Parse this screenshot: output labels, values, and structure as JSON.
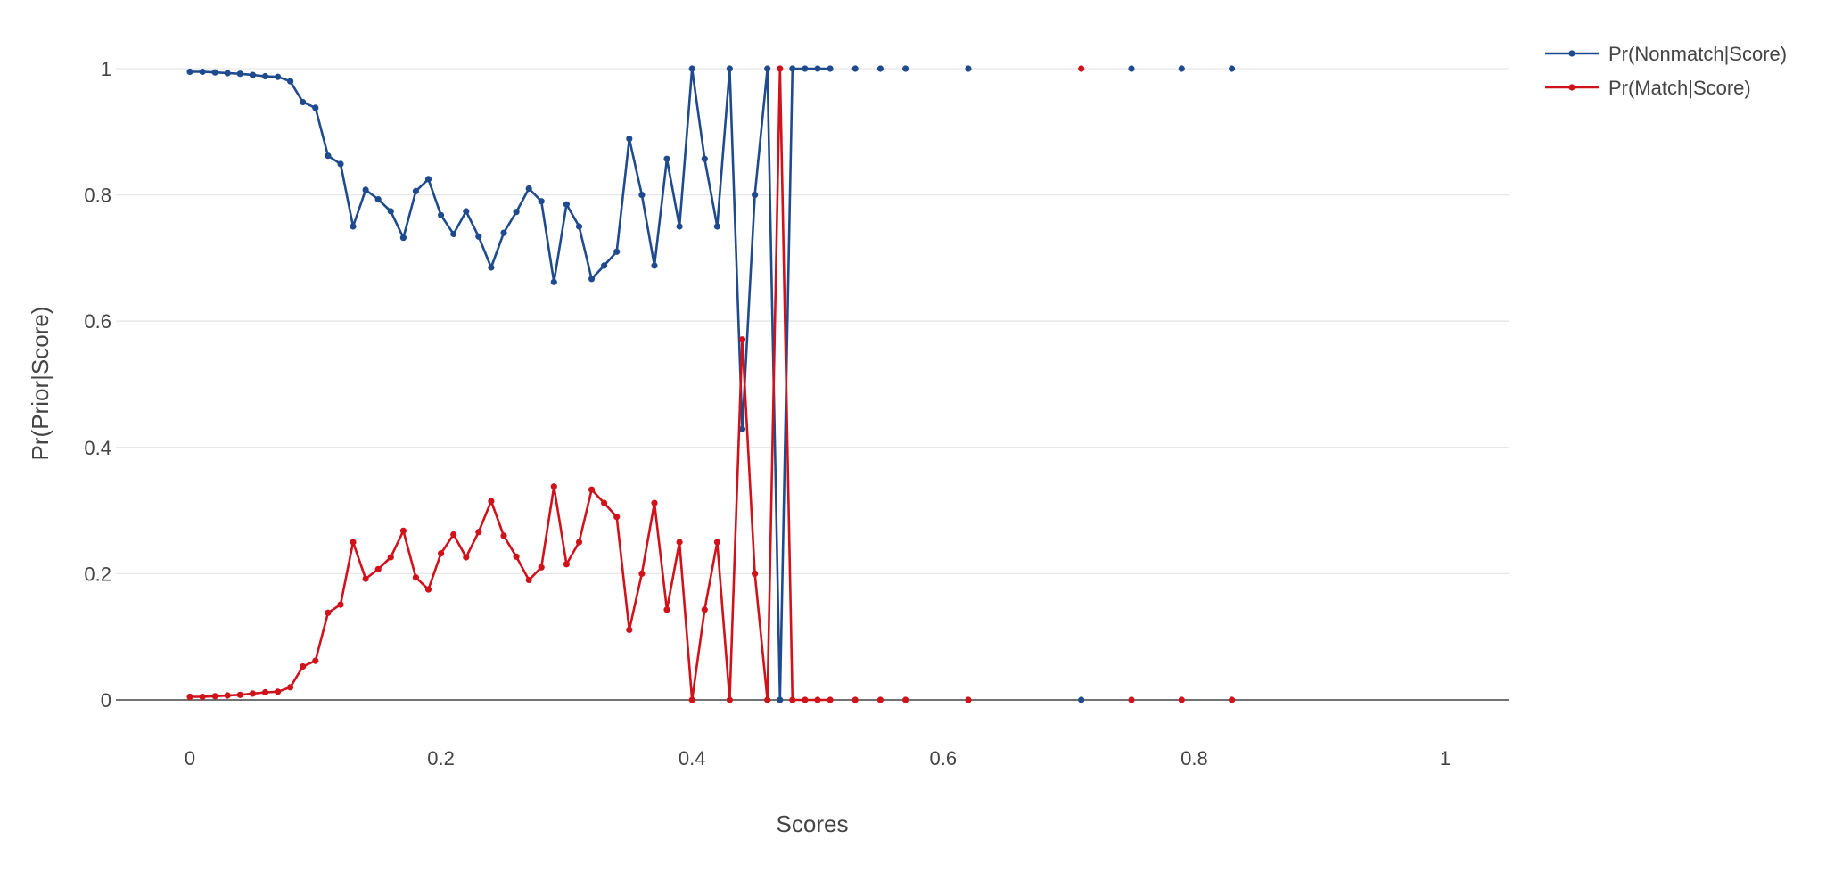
{
  "chart_data": {
    "type": "line",
    "title": "",
    "xlabel": "Scores",
    "ylabel": "Pr(Prior|Score)",
    "xlim": [
      -0.06,
      1.05
    ],
    "ylim": [
      -0.09,
      1.07
    ],
    "x_ticks": [
      0,
      0.2,
      0.4,
      0.6,
      0.8,
      1
    ],
    "x_tick_labels": [
      "0",
      "0.2",
      "0.4",
      "0.6",
      "0.8",
      "1"
    ],
    "y_ticks": [
      0,
      0.2,
      0.4,
      0.6,
      0.8,
      1
    ],
    "y_tick_labels": [
      "0",
      "0.2",
      "0.4",
      "0.6",
      "0.8",
      "1"
    ],
    "grid": true,
    "legend_position": "top-right",
    "series": [
      {
        "name": "Pr(Nonmatch|Score)",
        "color": "#1f4b8e",
        "marker": "circle",
        "points": [
          [
            0.0,
            0.995
          ],
          [
            0.01,
            0.995
          ],
          [
            0.02,
            0.994
          ],
          [
            0.03,
            0.993
          ],
          [
            0.04,
            0.992
          ],
          [
            0.05,
            0.99
          ],
          [
            0.06,
            0.988
          ],
          [
            0.07,
            0.987
          ],
          [
            0.08,
            0.98
          ],
          [
            0.09,
            0.947
          ],
          [
            0.1,
            0.938
          ],
          [
            0.11,
            0.862
          ],
          [
            0.12,
            0.849
          ],
          [
            0.13,
            0.75
          ],
          [
            0.14,
            0.808
          ],
          [
            0.15,
            0.793
          ],
          [
            0.16,
            0.774
          ],
          [
            0.17,
            0.732
          ],
          [
            0.18,
            0.806
          ],
          [
            0.19,
            0.825
          ],
          [
            0.2,
            0.768
          ],
          [
            0.21,
            0.738
          ],
          [
            0.22,
            0.774
          ],
          [
            0.23,
            0.734
          ],
          [
            0.24,
            0.685
          ],
          [
            0.25,
            0.74
          ],
          [
            0.26,
            0.773
          ],
          [
            0.27,
            0.81
          ],
          [
            0.28,
            0.79
          ],
          [
            0.29,
            0.662
          ],
          [
            0.3,
            0.785
          ],
          [
            0.31,
            0.75
          ],
          [
            0.32,
            0.667
          ],
          [
            0.33,
            0.688
          ],
          [
            0.34,
            0.71
          ],
          [
            0.35,
            0.889
          ],
          [
            0.36,
            0.8
          ],
          [
            0.37,
            0.688
          ],
          [
            0.38,
            0.857
          ],
          [
            0.39,
            0.75
          ],
          [
            0.4,
            1.0
          ],
          [
            0.41,
            0.857
          ],
          [
            0.42,
            0.75
          ],
          [
            0.43,
            1.0
          ],
          [
            0.44,
            0.429
          ],
          [
            0.45,
            0.8
          ],
          [
            0.46,
            1.0
          ],
          [
            0.47,
            0.0
          ],
          [
            0.48,
            1.0
          ],
          [
            0.49,
            1.0
          ],
          [
            0.5,
            1.0
          ],
          [
            0.51,
            1.0
          ],
          null,
          [
            0.53,
            1.0
          ],
          null,
          [
            0.55,
            1.0
          ],
          null,
          [
            0.57,
            1.0
          ],
          null,
          [
            0.62,
            1.0
          ],
          null,
          [
            0.71,
            0.0
          ],
          null,
          [
            0.75,
            1.0
          ],
          null,
          [
            0.79,
            1.0
          ],
          null,
          [
            0.83,
            1.0
          ]
        ]
      },
      {
        "name": "Pr(Match|Score)",
        "color": "#d0121b",
        "marker": "circle",
        "points": [
          [
            0.0,
            0.005
          ],
          [
            0.01,
            0.005
          ],
          [
            0.02,
            0.006
          ],
          [
            0.03,
            0.007
          ],
          [
            0.04,
            0.008
          ],
          [
            0.05,
            0.01
          ],
          [
            0.06,
            0.012
          ],
          [
            0.07,
            0.013
          ],
          [
            0.08,
            0.02
          ],
          [
            0.09,
            0.053
          ],
          [
            0.1,
            0.062
          ],
          [
            0.11,
            0.138
          ],
          [
            0.12,
            0.151
          ],
          [
            0.13,
            0.25
          ],
          [
            0.14,
            0.192
          ],
          [
            0.15,
            0.207
          ],
          [
            0.16,
            0.226
          ],
          [
            0.17,
            0.268
          ],
          [
            0.18,
            0.194
          ],
          [
            0.19,
            0.175
          ],
          [
            0.2,
            0.232
          ],
          [
            0.21,
            0.262
          ],
          [
            0.22,
            0.226
          ],
          [
            0.23,
            0.266
          ],
          [
            0.24,
            0.315
          ],
          [
            0.25,
            0.26
          ],
          [
            0.26,
            0.227
          ],
          [
            0.27,
            0.19
          ],
          [
            0.28,
            0.21
          ],
          [
            0.29,
            0.338
          ],
          [
            0.3,
            0.215
          ],
          [
            0.31,
            0.25
          ],
          [
            0.32,
            0.333
          ],
          [
            0.33,
            0.312
          ],
          [
            0.34,
            0.29
          ],
          [
            0.35,
            0.111
          ],
          [
            0.36,
            0.2
          ],
          [
            0.37,
            0.312
          ],
          [
            0.38,
            0.143
          ],
          [
            0.39,
            0.25
          ],
          [
            0.4,
            0.0
          ],
          [
            0.41,
            0.143
          ],
          [
            0.42,
            0.25
          ],
          [
            0.43,
            0.0
          ],
          [
            0.44,
            0.571
          ],
          [
            0.45,
            0.2
          ],
          [
            0.46,
            0.0
          ],
          [
            0.47,
            1.0
          ],
          [
            0.48,
            0.0
          ],
          [
            0.49,
            0.0
          ],
          [
            0.5,
            0.0
          ],
          [
            0.51,
            0.0
          ],
          null,
          [
            0.53,
            0.0
          ],
          null,
          [
            0.55,
            0.0
          ],
          null,
          [
            0.57,
            0.0
          ],
          null,
          [
            0.62,
            0.0
          ],
          null,
          [
            0.71,
            1.0
          ],
          null,
          [
            0.75,
            0.0
          ],
          null,
          [
            0.79,
            0.0
          ],
          null,
          [
            0.83,
            0.0
          ]
        ]
      }
    ]
  }
}
